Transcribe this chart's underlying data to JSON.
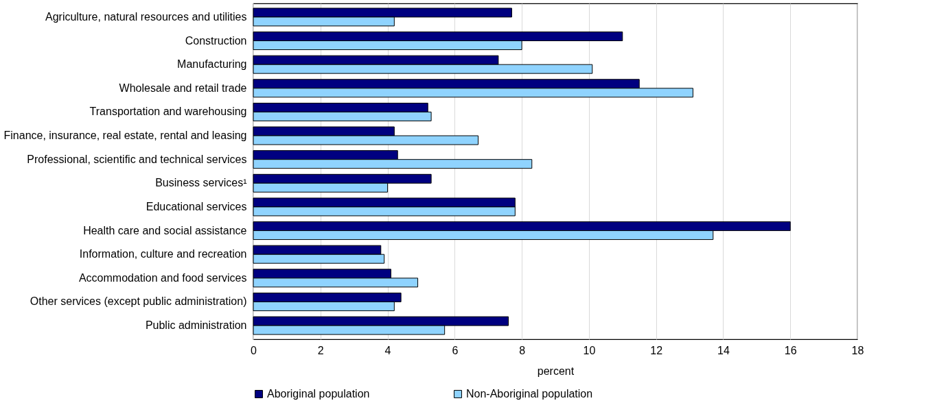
{
  "chart_data": {
    "type": "bar",
    "orientation": "horizontal",
    "xlabel": "percent",
    "categories": [
      "Agriculture, natural resources and utilities",
      "Construction",
      "Manufacturing",
      "Wholesale and retail trade",
      "Transportation and warehousing",
      "Finance, insurance, real estate, rental and leasing",
      "Professional, scientific and technical services",
      "Business services¹",
      "Educational services",
      "Health care and social assistance",
      "Information, culture and recreation",
      "Accommodation and food services",
      "Other services (except public administration)",
      "Public administration"
    ],
    "series": [
      {
        "name": "Aboriginal population",
        "color": "#000080",
        "values": [
          7.7,
          11.0,
          7.3,
          11.5,
          5.2,
          4.2,
          4.3,
          5.3,
          7.8,
          16.0,
          3.8,
          4.1,
          4.4,
          7.6
        ]
      },
      {
        "name": "Non-Aboriginal population",
        "color": "#8fd3fe",
        "values": [
          4.2,
          8.0,
          10.1,
          13.1,
          5.3,
          6.7,
          8.3,
          4.0,
          7.8,
          13.7,
          3.9,
          4.9,
          4.2,
          5.7
        ]
      }
    ],
    "xlim": [
      0,
      18
    ],
    "xticks": [
      0,
      2,
      4,
      6,
      8,
      10,
      12,
      14,
      16,
      18
    ],
    "grid": "x",
    "legend": "bottom"
  }
}
